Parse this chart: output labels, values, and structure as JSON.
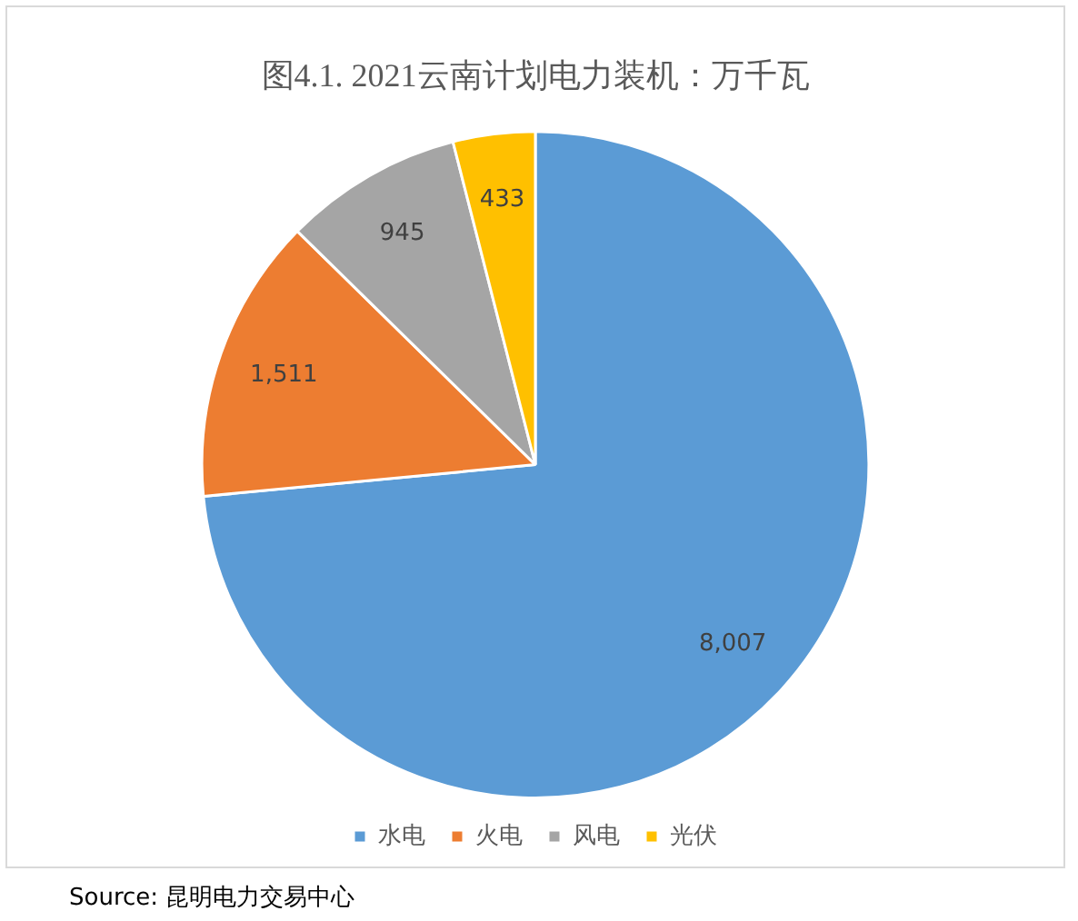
{
  "chart_data": {
    "type": "pie",
    "title": "图4.1. 2021云南计划电力装机：万千瓦",
    "categories": [
      "水电",
      "火电",
      "风电",
      "光伏"
    ],
    "values": [
      8007,
      1511,
      945,
      433
    ],
    "colors": [
      "#5b9bd5",
      "#ed7d31",
      "#a5a5a5",
      "#ffc000"
    ],
    "value_labels": [
      "8,007",
      "1,511",
      "945",
      "433"
    ],
    "legend": "bottom",
    "annotations": [
      "Source:  昆明电力交易中心"
    ]
  }
}
